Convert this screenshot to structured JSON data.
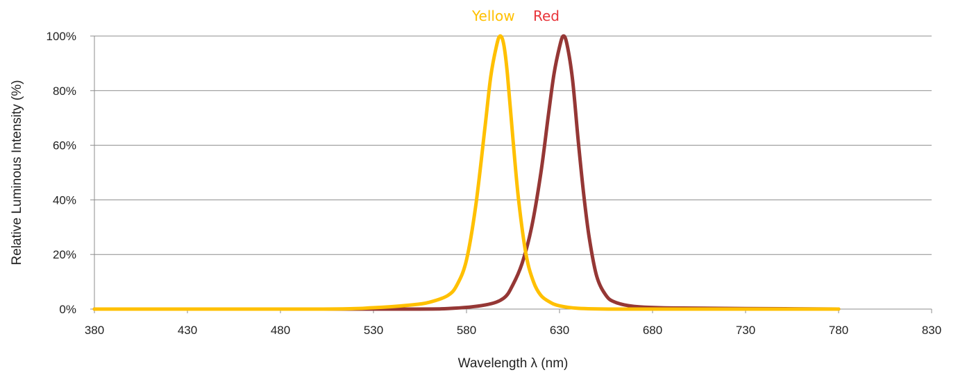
{
  "chart_data": {
    "type": "line",
    "xlabel": "Wavelength λ (nm)",
    "ylabel": "Relative Luminous Intensity (%)",
    "xlim": [
      380,
      830
    ],
    "ylim": [
      0,
      100
    ],
    "x_ticks": [
      380,
      430,
      480,
      530,
      580,
      630,
      680,
      730,
      780,
      830
    ],
    "y_ticks": [
      0,
      20,
      40,
      60,
      80,
      100
    ],
    "y_tick_labels": [
      "0%",
      "20%",
      "40%",
      "60%",
      "80%",
      "100%"
    ],
    "grid": "horizontal",
    "legend": "top labels",
    "series": [
      {
        "name": "Yellow",
        "color": "#FFC000",
        "x": [
          380,
          500,
          530,
          550,
          560,
          570,
          575,
          580,
          585,
          590,
          593,
          596,
          598,
          600,
          602,
          605,
          608,
          612,
          616,
          620,
          625,
          630,
          640,
          660,
          700,
          780
        ],
        "y": [
          0,
          0,
          0.5,
          1.5,
          2.5,
          5,
          9,
          18,
          38,
          67,
          85,
          96,
          100,
          97,
          86,
          62,
          40,
          20,
          10,
          5,
          2.5,
          1.2,
          0.3,
          0,
          0,
          0
        ]
      },
      {
        "name": "Red",
        "color": "#953735",
        "x": [
          380,
          540,
          570,
          590,
          600,
          605,
          610,
          615,
          620,
          624,
          627,
          630,
          632,
          634,
          637,
          640,
          643,
          646,
          650,
          655,
          660,
          670,
          690,
          730,
          780
        ],
        "y": [
          0,
          0,
          0.2,
          1.5,
          4,
          9,
          17,
          30,
          50,
          71,
          86,
          96,
          100,
          97,
          84,
          62,
          42,
          26,
          12,
          5,
          2.5,
          1,
          0.4,
          0.2,
          0
        ]
      }
    ]
  }
}
